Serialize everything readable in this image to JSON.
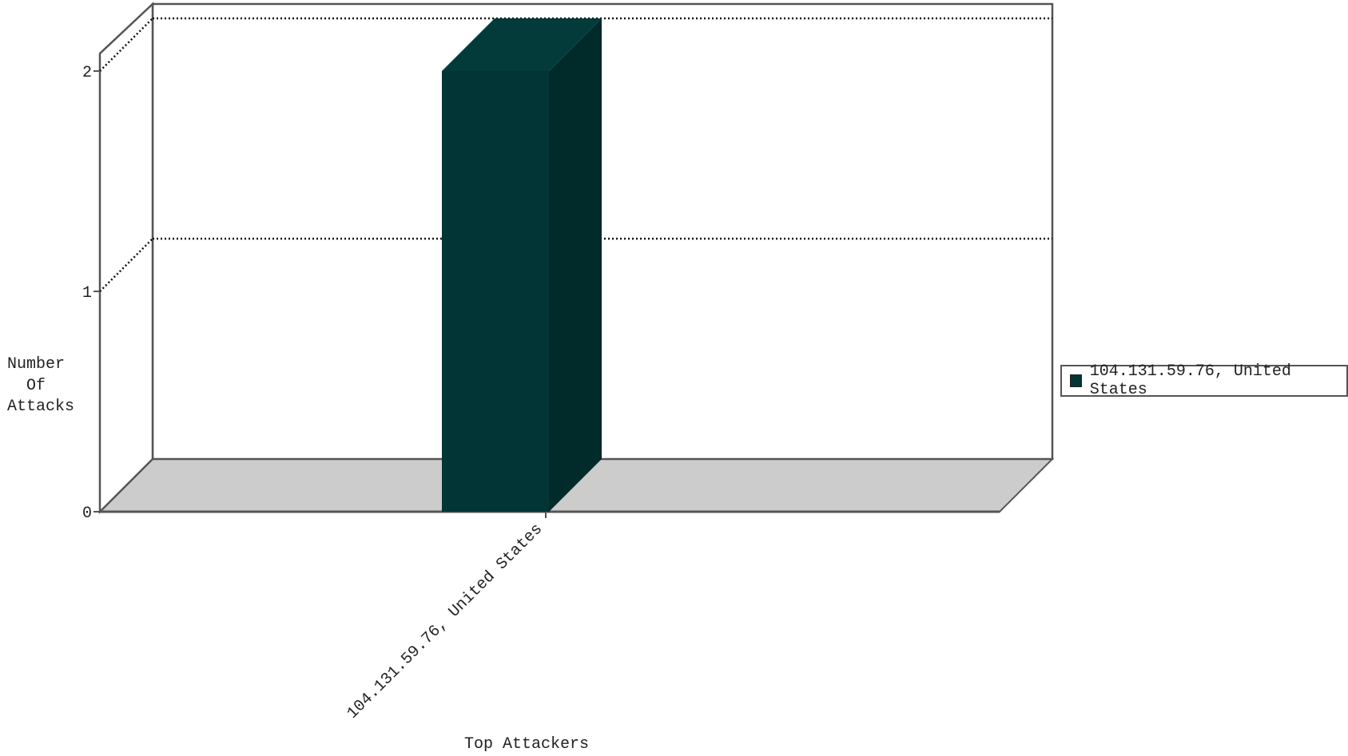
{
  "chart_data": {
    "type": "bar",
    "categories": [
      "104.131.59.76, United States"
    ],
    "values": [
      2
    ],
    "series": [
      {
        "name": "104.131.59.76, United States",
        "values": [
          2
        ]
      }
    ],
    "xlabel": "Top Attackers",
    "ylabel": [
      "Number",
      "Of",
      "Attacks"
    ],
    "ylim": [
      0,
      2
    ],
    "yticks": [
      "0",
      "1",
      "2"
    ],
    "grid": true,
    "legend_position": "right",
    "colors": {
      "bar_front": "#023535",
      "bar_top": "#033a3a",
      "bar_side": "#012a2a",
      "floor": "#cccccc",
      "axis": "#555555"
    }
  }
}
